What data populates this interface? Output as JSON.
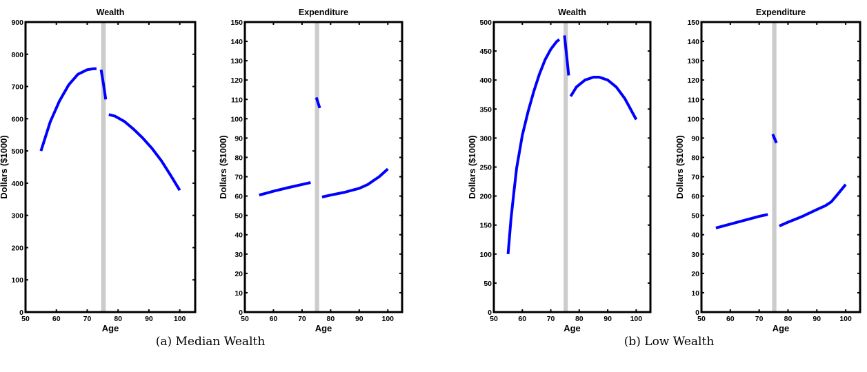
{
  "captions": [
    "(a) Median Wealth",
    "(b) Low Wealth"
  ],
  "chart_data": [
    {
      "type": "line",
      "title": "Wealth",
      "xlabel": "Age",
      "ylabel": "Dollars ($1000)",
      "xlim": [
        50,
        105
      ],
      "ylim": [
        0,
        900
      ],
      "xticks": [
        50,
        60,
        70,
        80,
        90,
        100
      ],
      "yticks": [
        0,
        100,
        200,
        300,
        400,
        500,
        600,
        700,
        800,
        900
      ],
      "line_color": "#0000ff",
      "band": {
        "x_from": 74.5,
        "x_to": 76,
        "color": "#cccccc"
      },
      "segments": [
        {
          "x": [
            55,
            58,
            61,
            64,
            67,
            70,
            72,
            73
          ],
          "y": [
            500,
            590,
            655,
            705,
            738,
            752,
            755,
            755
          ]
        },
        {
          "x": [
            74.5,
            75.3,
            76
          ],
          "y": [
            752,
            705,
            660
          ]
        },
        {
          "x": [
            77,
            79,
            82,
            85,
            88,
            91,
            94,
            97,
            100
          ],
          "y": [
            613,
            608,
            592,
            568,
            540,
            508,
            470,
            425,
            378
          ]
        }
      ]
    },
    {
      "type": "line",
      "title": "Expenditure",
      "xlabel": "Age",
      "ylabel": "Dollars ($1000)",
      "xlim": [
        50,
        105
      ],
      "ylim": [
        0,
        150
      ],
      "xticks": [
        50,
        60,
        70,
        80,
        90,
        100
      ],
      "yticks": [
        0,
        10,
        20,
        30,
        40,
        50,
        60,
        70,
        80,
        90,
        100,
        110,
        120,
        130,
        140,
        150
      ],
      "line_color": "#0000ff",
      "band": {
        "x_from": 74.5,
        "x_to": 76,
        "color": "#cccccc"
      },
      "segments": [
        {
          "x": [
            55,
            60,
            65,
            70,
            73
          ],
          "y": [
            60.5,
            62.5,
            64.3,
            66,
            67
          ]
        },
        {
          "x": [
            75,
            76.2
          ],
          "y": [
            111,
            105.5
          ]
        },
        {
          "x": [
            77,
            80,
            85,
            90,
            93,
            95,
            97,
            100
          ],
          "y": [
            59.5,
            60.5,
            62,
            64,
            66,
            68,
            70,
            74
          ]
        }
      ]
    },
    {
      "type": "line",
      "title": "Wealth",
      "xlabel": "Age",
      "ylabel": "Dollars ($1000)",
      "xlim": [
        50,
        105
      ],
      "ylim": [
        0,
        500
      ],
      "xticks": [
        50,
        60,
        70,
        80,
        90,
        100
      ],
      "yticks": [
        0,
        50,
        100,
        150,
        200,
        250,
        300,
        350,
        400,
        450,
        500
      ],
      "line_color": "#0000ff",
      "band": {
        "x_from": 74.5,
        "x_to": 76,
        "color": "#cccccc"
      },
      "segments": [
        {
          "x": [
            55,
            56,
            57,
            58,
            60,
            62,
            64,
            66,
            68,
            70,
            72,
            73
          ],
          "y": [
            100,
            160,
            205,
            248,
            305,
            345,
            380,
            410,
            435,
            453,
            466,
            470
          ]
        },
        {
          "x": [
            74.8,
            75.6,
            76.3
          ],
          "y": [
            477,
            440,
            408
          ]
        },
        {
          "x": [
            77,
            79,
            82,
            85,
            87,
            90,
            93,
            96,
            100
          ],
          "y": [
            372,
            388,
            400,
            405,
            405,
            400,
            388,
            368,
            332
          ]
        }
      ]
    },
    {
      "type": "line",
      "title": "Expenditure",
      "xlabel": "Age",
      "ylabel": "Dollars ($1000)",
      "xlim": [
        50,
        105
      ],
      "ylim": [
        0,
        150
      ],
      "xticks": [
        50,
        60,
        70,
        80,
        90,
        100
      ],
      "yticks": [
        0,
        10,
        20,
        30,
        40,
        50,
        60,
        70,
        80,
        90,
        100,
        110,
        120,
        130,
        140,
        150
      ],
      "line_color": "#0000ff",
      "band": {
        "x_from": 74.5,
        "x_to": 76,
        "color": "#cccccc"
      },
      "segments": [
        {
          "x": [
            55,
            60,
            65,
            70,
            73
          ],
          "y": [
            43.5,
            45.5,
            47.5,
            49.5,
            50.5
          ]
        },
        {
          "x": [
            74.7,
            76
          ],
          "y": [
            92,
            87.5
          ]
        },
        {
          "x": [
            77,
            80,
            85,
            90,
            93,
            95,
            97,
            100
          ],
          "y": [
            44.5,
            46.5,
            49.5,
            53,
            55,
            57,
            60.5,
            66
          ]
        }
      ]
    }
  ]
}
